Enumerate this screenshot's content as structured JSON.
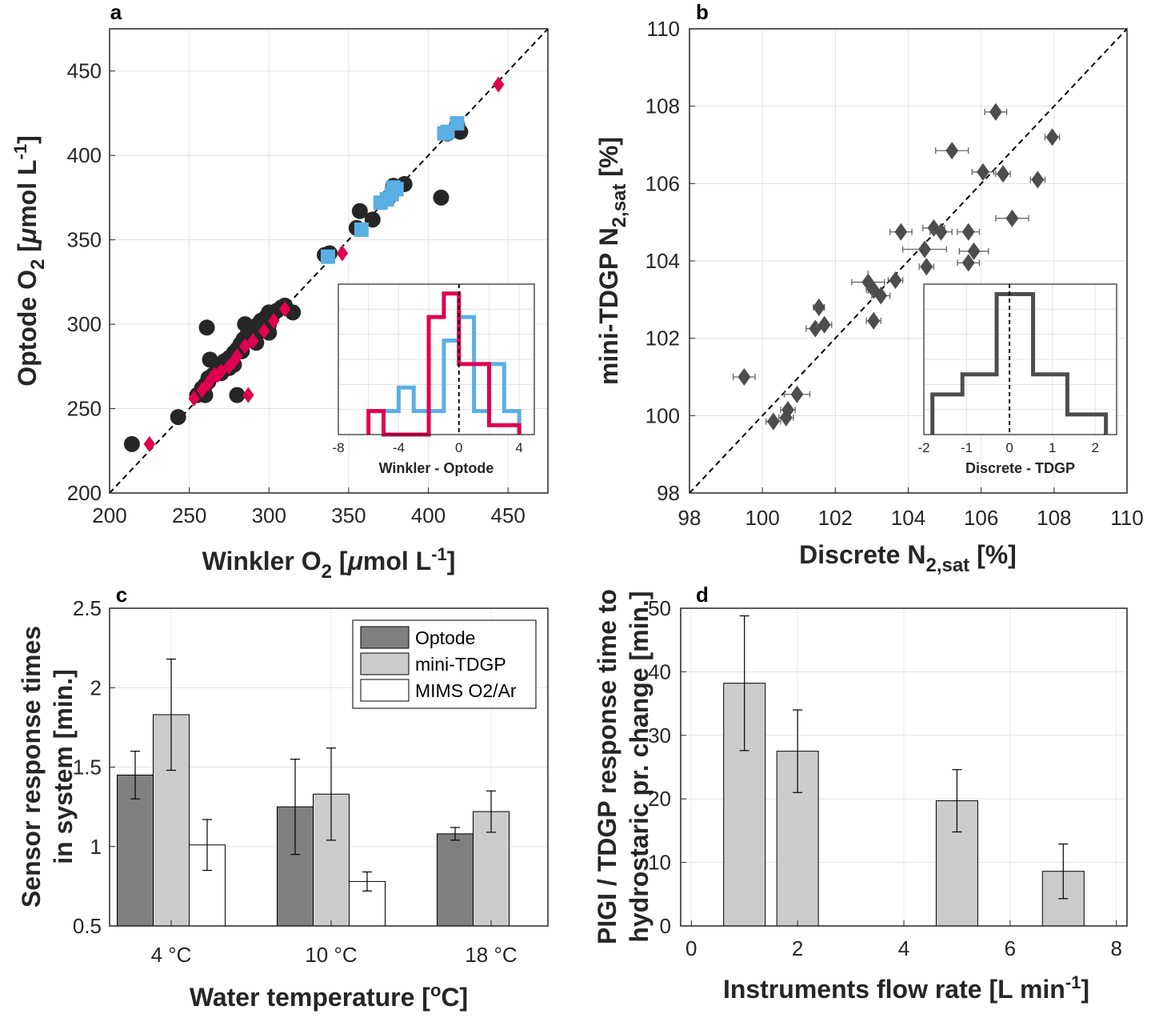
{
  "chart_data": [
    {
      "panel": "a",
      "type": "scatter",
      "xlabel_parts": [
        "Winkler O",
        "2",
        " [",
        "μ",
        "mol L",
        "-1",
        "]"
      ],
      "ylabel_parts": [
        "Optode O",
        "2",
        " [",
        "μ",
        "mol L",
        "-1",
        "]"
      ],
      "xlim": [
        200,
        475
      ],
      "ylim": [
        200,
        475
      ],
      "xticks": [
        200,
        250,
        300,
        350,
        400,
        450
      ],
      "yticks": [
        200,
        250,
        300,
        350,
        400,
        450
      ],
      "grid": true,
      "one_to_one_line": true,
      "colors": {
        "dark": "#262626",
        "blue": "#5aafe4",
        "red": "#e0004f"
      },
      "series": [
        {
          "marker": "circle",
          "color": "#262626",
          "points": [
            [
              214,
              229
            ],
            [
              243,
              245
            ],
            [
              255,
              258
            ],
            [
              258,
              262
            ],
            [
              260,
              264
            ],
            [
              262,
              268
            ],
            [
              265,
              270
            ],
            [
              268,
              272
            ],
            [
              270,
              275
            ],
            [
              272,
              278
            ],
            [
              275,
              280
            ],
            [
              278,
              283
            ],
            [
              280,
              285
            ],
            [
              282,
              288
            ],
            [
              284,
              291
            ],
            [
              286,
              293
            ],
            [
              290,
              296
            ],
            [
              292,
              299
            ],
            [
              295,
              302
            ],
            [
              298,
              304
            ],
            [
              300,
              307
            ],
            [
              302,
              305
            ],
            [
              305,
              308
            ],
            [
              308,
              310
            ],
            [
              310,
              311
            ],
            [
              315,
              307
            ],
            [
              300,
              295
            ],
            [
              300,
              300
            ],
            [
              285,
              300
            ],
            [
              292,
              289
            ],
            [
              295,
              296
            ],
            [
              261,
              298
            ],
            [
              263,
              279
            ],
            [
              280,
              258
            ],
            [
              260,
              258
            ],
            [
              262,
              266
            ],
            [
              270,
              271
            ],
            [
              275,
              274
            ],
            [
              278,
              276
            ],
            [
              283,
              284
            ],
            [
              335,
              341
            ],
            [
              338,
              342
            ],
            [
              355,
              357
            ],
            [
              357,
              367
            ],
            [
              365,
              362
            ],
            [
              375,
              375
            ],
            [
              378,
              382
            ],
            [
              385,
              383
            ],
            [
              408,
              375
            ],
            [
              412,
              413
            ],
            [
              418,
              418
            ],
            [
              420,
              414
            ]
          ]
        },
        {
          "marker": "square",
          "color": "#5aafe4",
          "points": [
            [
              337,
              340
            ],
            [
              358,
              356
            ],
            [
              370,
              372
            ],
            [
              374,
              374
            ],
            [
              377,
              377
            ],
            [
              378,
              381
            ],
            [
              380,
              380
            ],
            [
              410,
              413
            ],
            [
              412,
              414
            ],
            [
              418,
              419
            ]
          ]
        },
        {
          "marker": "diamond",
          "color": "#e0004f",
          "points": [
            [
              225,
              229
            ],
            [
              253,
              256
            ],
            [
              258,
              261
            ],
            [
              262,
              265
            ],
            [
              264,
              268
            ],
            [
              266,
              270
            ],
            [
              268,
              270
            ],
            [
              270,
              272
            ],
            [
              275,
              275
            ],
            [
              278,
              278
            ],
            [
              280,
              281
            ],
            [
              285,
              287
            ],
            [
              290,
              290
            ],
            [
              297,
              296
            ],
            [
              303,
              302
            ],
            [
              310,
              309
            ],
            [
              287,
              258
            ],
            [
              346,
              342
            ],
            [
              444,
              442
            ]
          ]
        }
      ],
      "inset": {
        "xlabel": "Winkler - Optode",
        "xlim": [
          -8,
          5
        ],
        "xticks": [
          -8,
          -4,
          0,
          4
        ],
        "zero_line": true,
        "blue_steps": {
          "edges": [
            -5,
            -4,
            -3,
            -2,
            -1,
            0,
            1,
            2,
            3,
            4
          ],
          "counts": [
            1,
            2,
            1,
            1,
            4,
            5,
            1,
            3,
            1
          ]
        },
        "red_steps": {
          "edges": [
            -6,
            -5,
            -4,
            -3,
            -2,
            -1,
            0,
            1,
            2,
            4
          ],
          "counts": [
            1,
            0,
            0,
            0,
            5,
            6,
            3,
            3,
            0.4
          ]
        },
        "ylim": [
          0,
          6.4
        ]
      }
    },
    {
      "panel": "b",
      "type": "scatter",
      "xlabel_parts": [
        "Discrete N",
        "2,sat",
        " [%]"
      ],
      "ylabel_parts": [
        "mini-TDGP N",
        "2,sat",
        " [%]"
      ],
      "xlim": [
        98,
        110
      ],
      "ylim": [
        98,
        110
      ],
      "xticks": [
        98,
        100,
        102,
        104,
        106,
        108,
        110
      ],
      "yticks": [
        98,
        100,
        102,
        104,
        106,
        108,
        110
      ],
      "grid": true,
      "one_to_one_line": true,
      "color": "#4d4d4d",
      "points": [
        {
          "x": 99.5,
          "y": 101.0,
          "xerr": 0.3,
          "yerr": 0.15
        },
        {
          "x": 100.3,
          "y": 99.85,
          "xerr": 0.2,
          "yerr": 0.15
        },
        {
          "x": 100.65,
          "y": 99.95,
          "xerr": 0.2,
          "yerr": 0.15
        },
        {
          "x": 100.7,
          "y": 100.15,
          "xerr": 0.2,
          "yerr": 0.15
        },
        {
          "x": 100.95,
          "y": 100.55,
          "xerr": 0.35,
          "yerr": 0.15
        },
        {
          "x": 101.45,
          "y": 102.25,
          "xerr": 0.25,
          "yerr": 0.15
        },
        {
          "x": 101.55,
          "y": 102.8,
          "xerr": 0.15,
          "yerr": 0.15
        },
        {
          "x": 101.7,
          "y": 102.35,
          "xerr": 0.2,
          "yerr": 0.15
        },
        {
          "x": 102.9,
          "y": 103.45,
          "xerr": 0.45,
          "yerr": 0.3
        },
        {
          "x": 103.05,
          "y": 103.25,
          "xerr": 0.2,
          "yerr": 0.15
        },
        {
          "x": 103.05,
          "y": 102.45,
          "xerr": 0.2,
          "yerr": 0.15
        },
        {
          "x": 103.25,
          "y": 103.1,
          "xerr": 0.25,
          "yerr": 0.15
        },
        {
          "x": 103.65,
          "y": 103.5,
          "xerr": 0.2,
          "yerr": 0.15
        },
        {
          "x": 103.8,
          "y": 104.75,
          "xerr": 0.3,
          "yerr": 0.15
        },
        {
          "x": 104.45,
          "y": 104.3,
          "xerr": 0.6,
          "yerr": 0.15
        },
        {
          "x": 104.5,
          "y": 103.85,
          "xerr": 0.2,
          "yerr": 0.15
        },
        {
          "x": 104.7,
          "y": 104.85,
          "xerr": 0.3,
          "yerr": 0.15
        },
        {
          "x": 104.9,
          "y": 104.75,
          "xerr": 0.3,
          "yerr": 0.15
        },
        {
          "x": 105.2,
          "y": 106.85,
          "xerr": 0.45,
          "yerr": 0.15
        },
        {
          "x": 105.65,
          "y": 104.75,
          "xerr": 0.3,
          "yerr": 0.15
        },
        {
          "x": 105.65,
          "y": 103.95,
          "xerr": 0.3,
          "yerr": 0.15
        },
        {
          "x": 105.8,
          "y": 104.25,
          "xerr": 0.4,
          "yerr": 0.15
        },
        {
          "x": 106.05,
          "y": 106.3,
          "xerr": 0.3,
          "yerr": 0.15
        },
        {
          "x": 106.4,
          "y": 107.85,
          "xerr": 0.3,
          "yerr": 0.15
        },
        {
          "x": 106.6,
          "y": 106.25,
          "xerr": 0.2,
          "yerr": 0.15
        },
        {
          "x": 106.85,
          "y": 105.1,
          "xerr": 0.45,
          "yerr": 0.15
        },
        {
          "x": 107.55,
          "y": 106.1,
          "xerr": 0.2,
          "yerr": 0.15
        },
        {
          "x": 107.95,
          "y": 107.2,
          "xerr": 0.2,
          "yerr": 0.15
        }
      ],
      "inset": {
        "xlabel": "Discrete - TDGP",
        "xlim": [
          -2,
          2.5
        ],
        "xticks": [
          -2,
          -1,
          0,
          1,
          2
        ],
        "zero_line": true,
        "steps": {
          "edges": [
            -1.8,
            -1.1,
            -0.3,
            0.55,
            1.35,
            2.25
          ],
          "counts": [
            2,
            3,
            7,
            3,
            1
          ]
        },
        "ylim": [
          0,
          7.5
        ]
      }
    },
    {
      "panel": "c",
      "type": "bar",
      "xlabel_parts": [
        "Water temperature [",
        "o",
        "C]"
      ],
      "ylabel_lines": [
        "Sensor response times",
        "in system [min.]"
      ],
      "categories": [
        "4 °C",
        "10 °C",
        "18 °C"
      ],
      "ylim": [
        0.5,
        2.5
      ],
      "yticks": [
        0.5,
        1,
        1.5,
        2,
        2.5
      ],
      "ytick_labels": [
        "0.5",
        "1",
        "1.5",
        "2",
        "2.5"
      ],
      "grid": true,
      "legend_position": "top-right",
      "series": [
        {
          "name": "Optode",
          "color": "#808080",
          "values": [
            1.45,
            1.25,
            1.08
          ],
          "errors": [
            0.15,
            0.3,
            0.04
          ]
        },
        {
          "name": "mini-TDGP",
          "color": "#cccccc",
          "values": [
            1.83,
            1.33,
            1.22
          ],
          "errors": [
            0.35,
            0.29,
            0.13
          ]
        },
        {
          "name": "MIMS O2/Ar",
          "color": "#ffffff",
          "values": [
            1.01,
            0.78,
            null
          ],
          "errors": [
            0.16,
            0.06,
            null
          ]
        }
      ]
    },
    {
      "panel": "d",
      "type": "bar",
      "xlabel_parts": [
        "Instruments flow rate [L min",
        "-1",
        "]"
      ],
      "ylabel_lines": [
        "PIGI / TDGP response time to",
        "hydrostaric pr. change [min.]"
      ],
      "x": [
        1,
        2,
        5,
        7
      ],
      "values": [
        38.2,
        27.5,
        19.7,
        8.6
      ],
      "errors": [
        10.6,
        6.5,
        4.9,
        4.3
      ],
      "xlim": [
        -0.2,
        8.2
      ],
      "ylim": [
        0,
        50
      ],
      "xticks": [
        0,
        2,
        4,
        6,
        8
      ],
      "yticks": [
        0,
        10,
        20,
        30,
        40,
        50
      ],
      "grid": true,
      "color": "#cccccc"
    }
  ]
}
